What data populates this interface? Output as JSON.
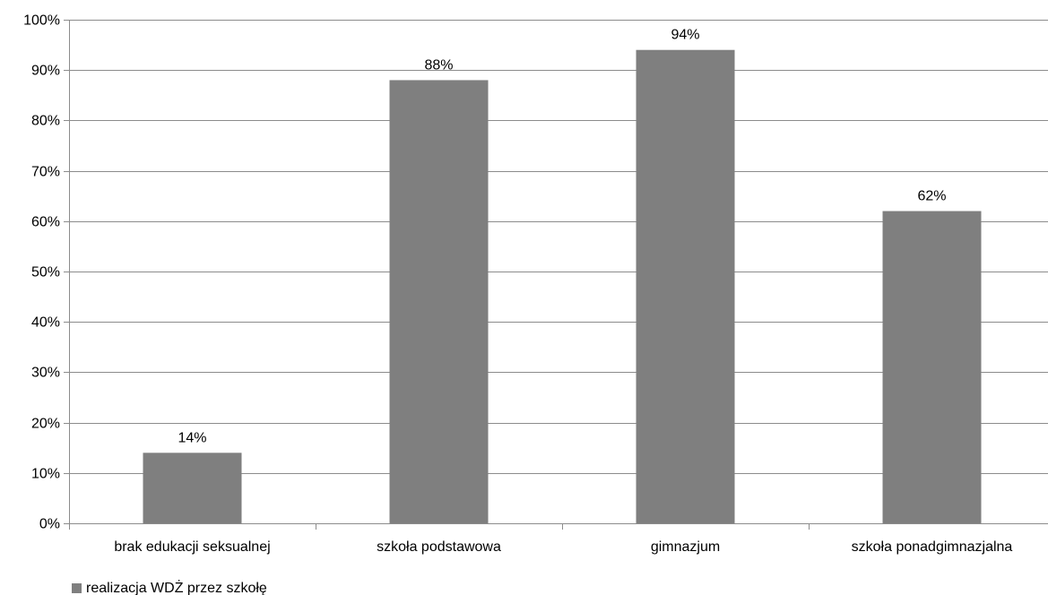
{
  "chart_data": {
    "type": "bar",
    "categories": [
      "brak edukacji seksualnej",
      "szkoła podstawowa",
      "gimnazjum",
      "szkoła ponadgimnazjalna"
    ],
    "series": [
      {
        "name": "realizacja WDŻ przez szkołę",
        "values": [
          0.14,
          0.88,
          0.94,
          0.62
        ],
        "data_labels": [
          "14%",
          "88%",
          "94%",
          "62%"
        ],
        "color": "#7f7f7f"
      }
    ],
    "ylim": [
      0,
      1
    ],
    "yticks": [
      0,
      0.1,
      0.2,
      0.3,
      0.4,
      0.5,
      0.6,
      0.7,
      0.8,
      0.9,
      1.0
    ],
    "ytick_labels": [
      "0%",
      "10%",
      "20%",
      "30%",
      "40%",
      "50%",
      "60%",
      "70%",
      "80%",
      "90%",
      "100%"
    ],
    "grid": true,
    "legend_position": "bottom-left",
    "title": "",
    "xlabel": "",
    "ylabel": ""
  }
}
